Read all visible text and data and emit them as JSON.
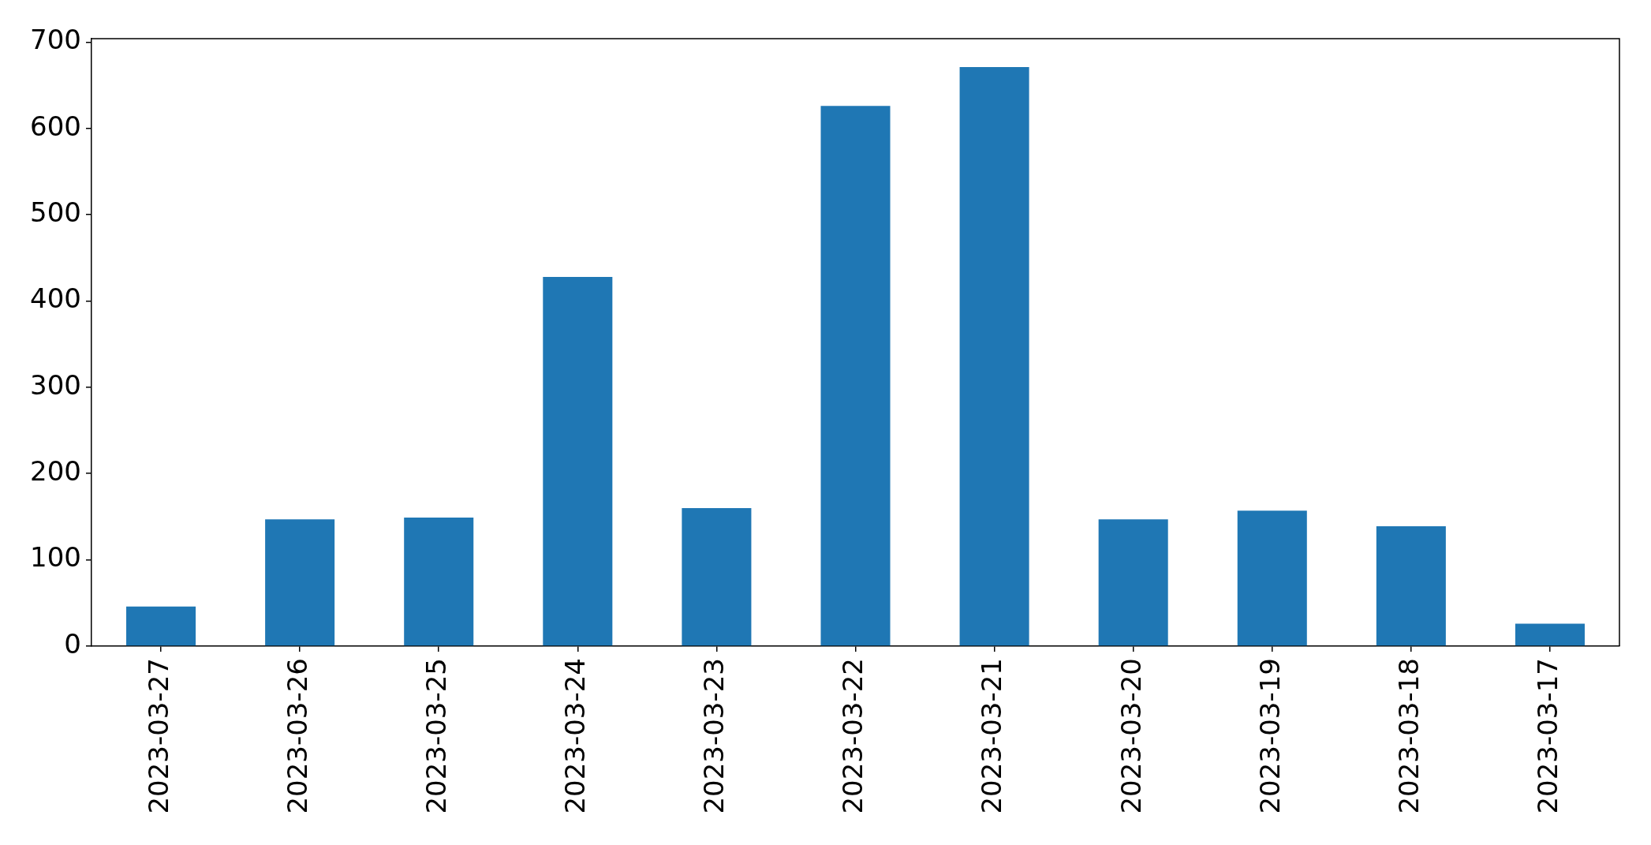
{
  "chart_data": {
    "type": "bar",
    "categories": [
      "2023-03-27",
      "2023-03-26",
      "2023-03-25",
      "2023-03-24",
      "2023-03-23",
      "2023-03-22",
      "2023-03-21",
      "2023-03-20",
      "2023-03-19",
      "2023-03-18",
      "2023-03-17"
    ],
    "values": [
      46,
      147,
      149,
      428,
      160,
      626,
      671,
      147,
      157,
      139,
      26
    ],
    "color": "#1f77b4",
    "ylim": [
      0,
      704
    ],
    "yticks": [
      0,
      100,
      200,
      300,
      400,
      500,
      600,
      700
    ]
  }
}
